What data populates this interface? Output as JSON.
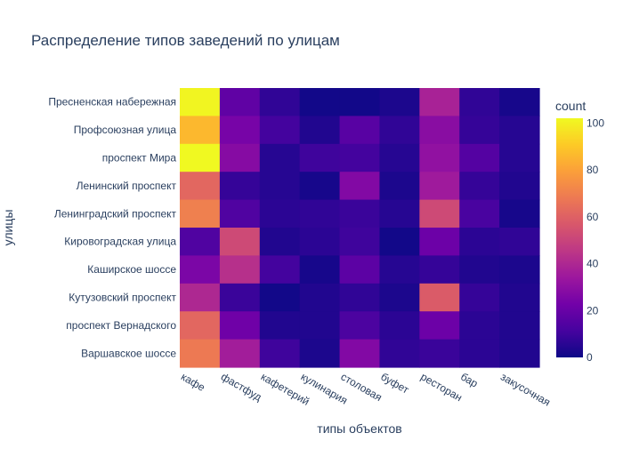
{
  "chart_data": {
    "type": "heatmap",
    "title": "Распределение типов заведений по улицам",
    "xlabel": "типы объектов",
    "ylabel": "улицы",
    "x": [
      "кафе",
      "фастфуд",
      "кафетерий",
      "кулинария",
      "столовая",
      "буфет",
      "ресторан",
      "бар",
      "закусочная"
    ],
    "y": [
      "Пресненская набережная",
      "Профсоюзная улица",
      "проспект Мира",
      "Ленинский проспект",
      "Ленинградский проспект",
      "Кировоградская улица",
      "Каширское шоссе",
      "Кутузовский проспект",
      "проспект Вернадского",
      "Варшавское шоссе"
    ],
    "z": [
      [
        101,
        18,
        7,
        1,
        1,
        3,
        38,
        7,
        2
      ],
      [
        86,
        24,
        11,
        4,
        16,
        7,
        29,
        8,
        5
      ],
      [
        102,
        28,
        5,
        10,
        11,
        5,
        31,
        15,
        5
      ],
      [
        62,
        8,
        5,
        2,
        27,
        3,
        35,
        8,
        4
      ],
      [
        70,
        14,
        6,
        7,
        9,
        5,
        52,
        12,
        2
      ],
      [
        14,
        52,
        4,
        6,
        10,
        1,
        21,
        6,
        7
      ],
      [
        25,
        43,
        11,
        2,
        17,
        5,
        8,
        4,
        3
      ],
      [
        40,
        9,
        1,
        4,
        7,
        3,
        58,
        8,
        4
      ],
      [
        62,
        22,
        4,
        4,
        13,
        6,
        21,
        6,
        4
      ],
      [
        68,
        36,
        10,
        3,
        27,
        7,
        9,
        6,
        4
      ]
    ],
    "colorbar": {
      "title": "count",
      "ticks": [
        0,
        20,
        40,
        60,
        80,
        100
      ],
      "range": [
        0,
        102
      ]
    },
    "colorscale": [
      "#0d0887",
      "#46039f",
      "#7201a8",
      "#9c179e",
      "#bd3786",
      "#d8576b",
      "#ed7953",
      "#fb9f3a",
      "#fdca26",
      "#f0f921"
    ]
  }
}
